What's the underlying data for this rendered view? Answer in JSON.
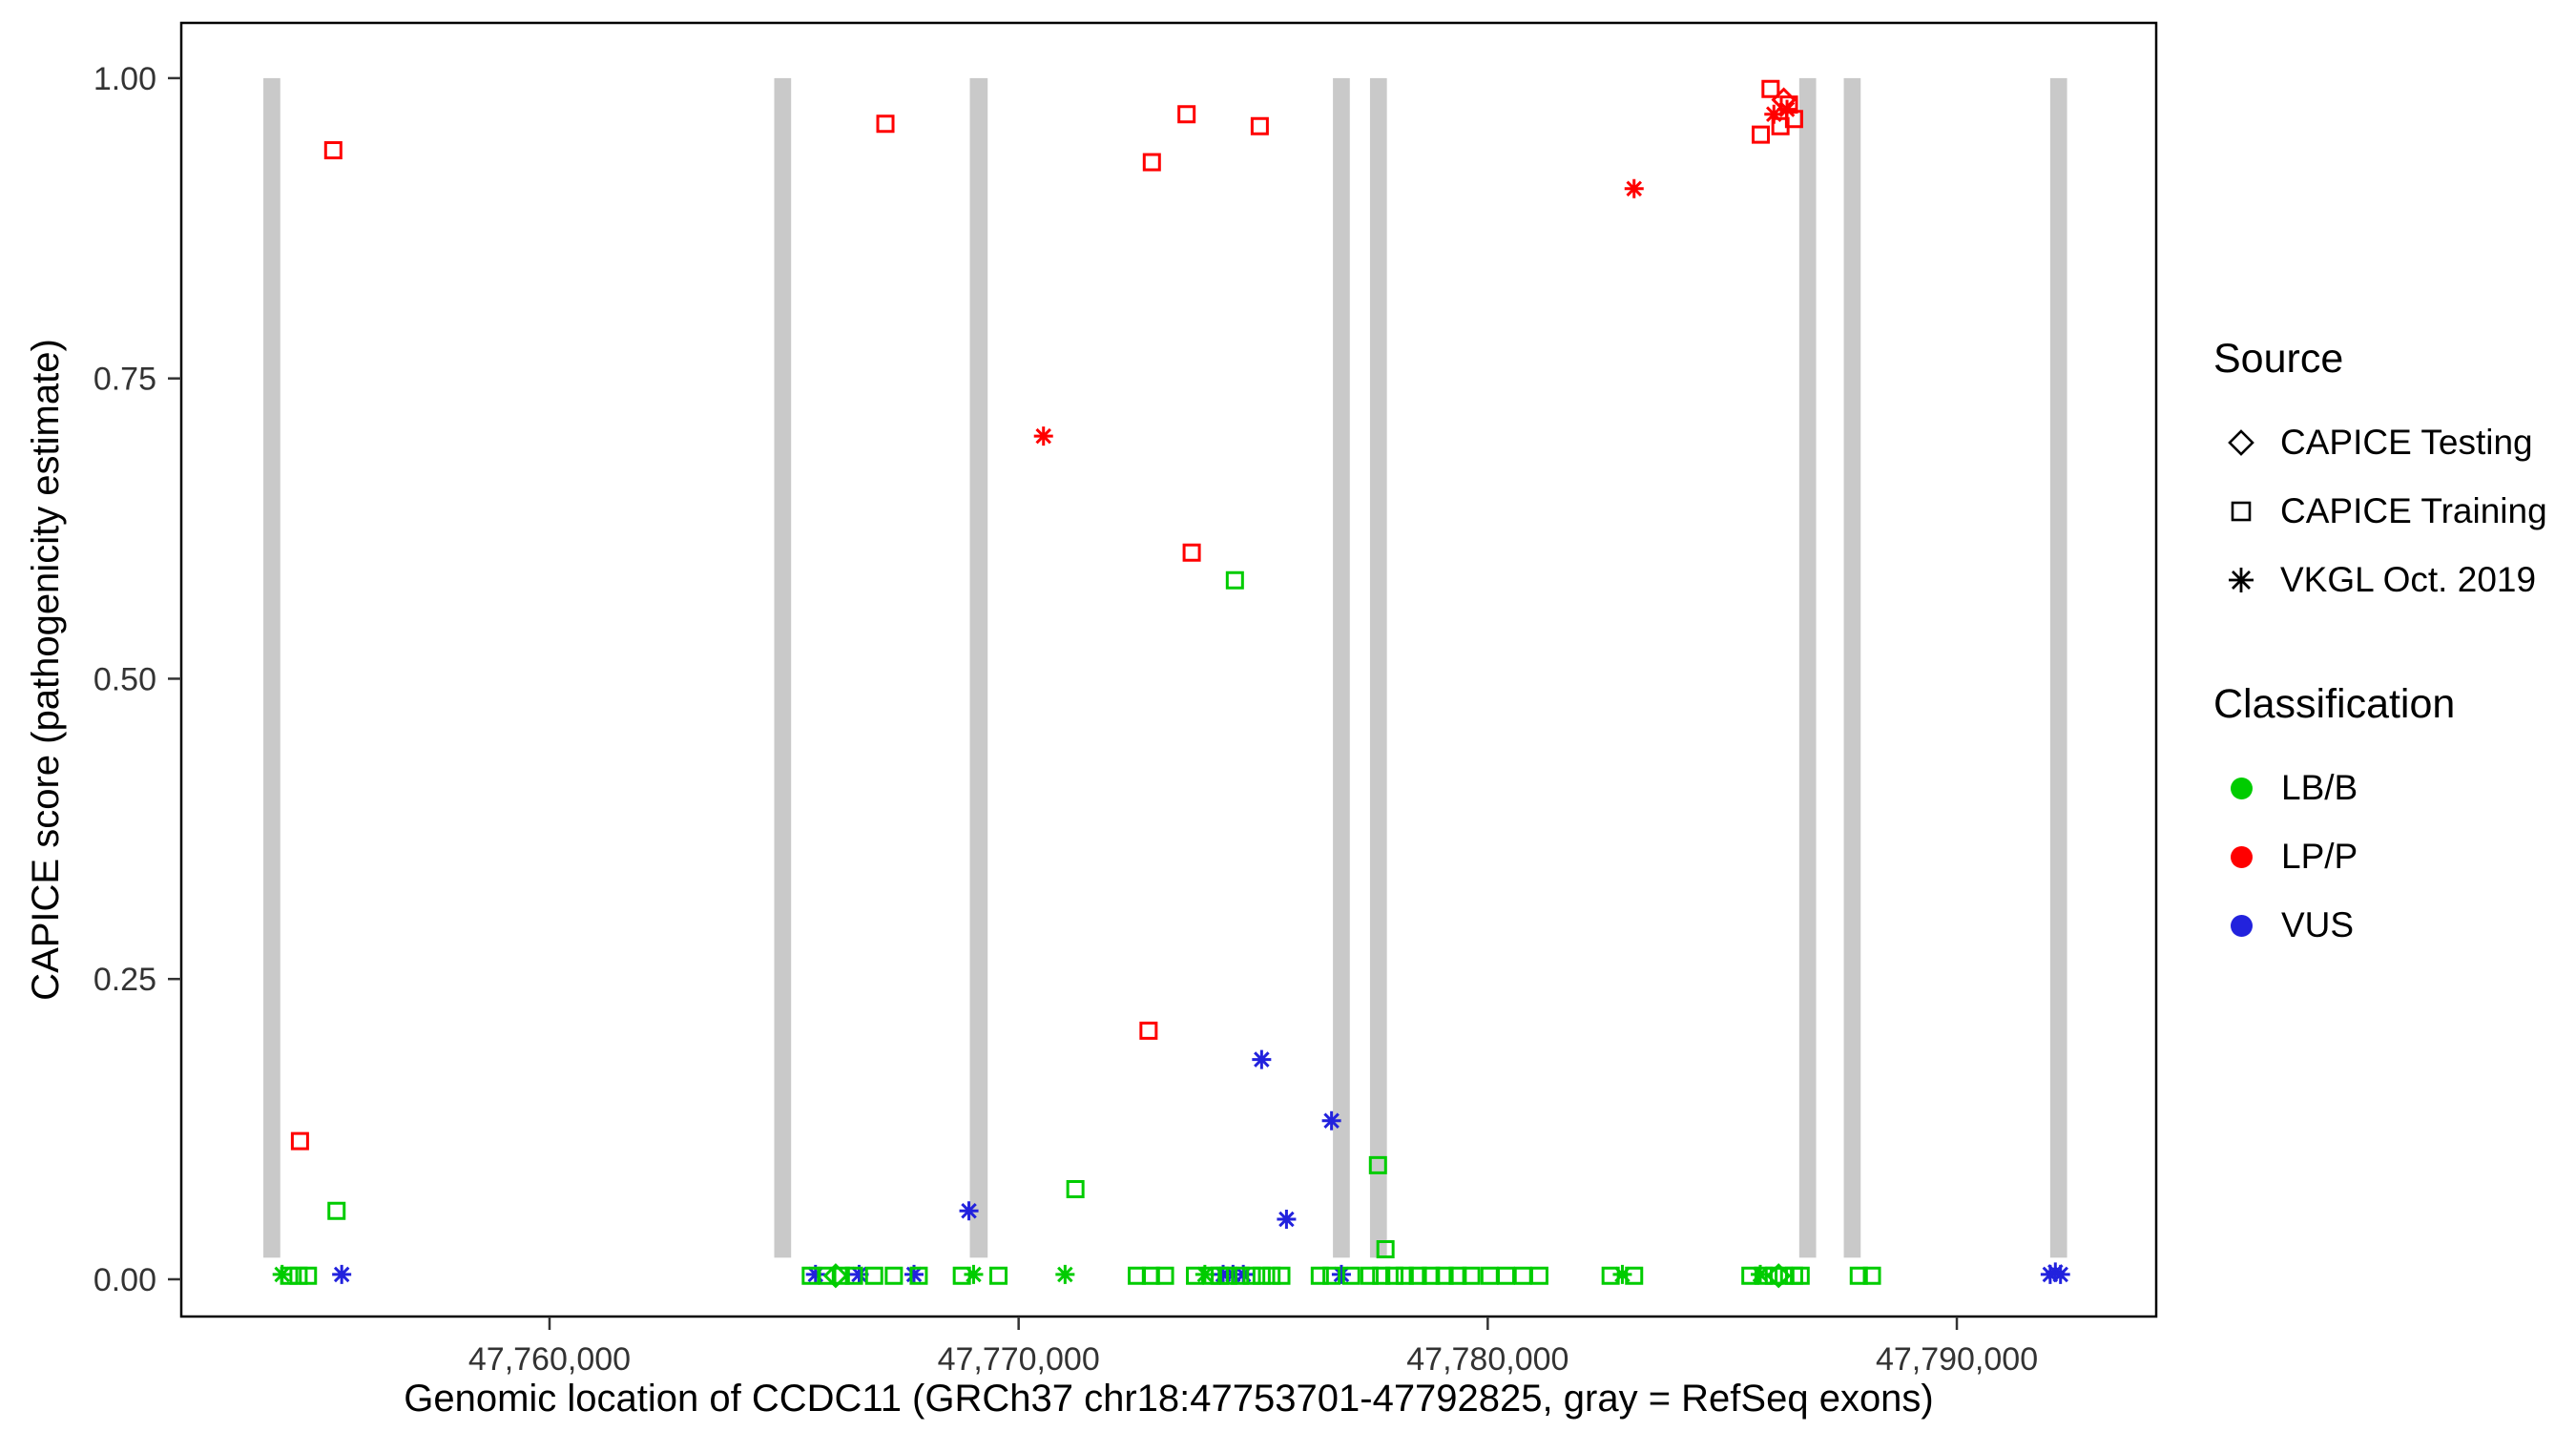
{
  "colors": {
    "LB/B": "#00CC00",
    "LP/P": "#FF0000",
    "VUS": "#2222DD",
    "exon": "#C9C9C9",
    "panel_border": "#000000",
    "tick_text": "#333333"
  },
  "legend": {
    "source": {
      "title": "Source",
      "items": [
        {
          "label": "CAPICE Testing",
          "marker": "diamond"
        },
        {
          "label": "CAPICE Training",
          "marker": "square"
        },
        {
          "label": "VKGL Oct. 2019",
          "marker": "asterisk"
        }
      ]
    },
    "classification": {
      "title": "Classification",
      "items": [
        {
          "label": "LB/B",
          "color": "#00CC00"
        },
        {
          "label": "LP/P",
          "color": "#FF0000"
        },
        {
          "label": "VUS",
          "color": "#2222DD"
        }
      ]
    }
  },
  "chart_data": {
    "type": "scatter",
    "title": "",
    "xlabel": "Genomic location of CCDC11 (GRCh37 chr18:47753701-47792825, gray = RefSeq exons)",
    "ylabel": "CAPICE score (pathogenicity estimate)",
    "xlim": [
      47752150,
      47794250
    ],
    "ylim": [
      -0.031,
      1.046
    ],
    "grid": false,
    "legend_position": "right",
    "x_ticks": [
      {
        "value": 47760000,
        "label": "47,760,000"
      },
      {
        "value": 47770000,
        "label": "47,770,000"
      },
      {
        "value": 47780000,
        "label": "47,780,000"
      },
      {
        "value": 47790000,
        "label": "47,790,000"
      }
    ],
    "y_ticks": [
      {
        "value": 0.0,
        "label": "0.00"
      },
      {
        "value": 0.25,
        "label": "0.25"
      },
      {
        "value": 0.5,
        "label": "0.50"
      },
      {
        "value": 0.75,
        "label": "0.75"
      },
      {
        "value": 1.0,
        "label": "1.00"
      }
    ],
    "marker_shapes": {
      "CAPICE Testing": "diamond",
      "CAPICE Training": "square",
      "VKGL Oct. 2019": "asterisk"
    },
    "exon_note": "gray vertical bars = RefSeq exons",
    "exon_y_range": [
      0.018,
      1.0
    ],
    "exons": [
      {
        "start": 47753900,
        "end": 47754260
      },
      {
        "start": 47764790,
        "end": 47765150
      },
      {
        "start": 47768960,
        "end": 47769340
      },
      {
        "start": 47776700,
        "end": 47777060
      },
      {
        "start": 47777490,
        "end": 47777850
      },
      {
        "start": 47786640,
        "end": 47787000
      },
      {
        "start": 47787590,
        "end": 47787950
      },
      {
        "start": 47791990,
        "end": 47792350
      }
    ],
    "points": [
      {
        "x": 47754680,
        "y": 0.115,
        "cls": "LP/P",
        "src": "CAPICE Training"
      },
      {
        "x": 47755390,
        "y": 0.94,
        "cls": "LP/P",
        "src": "CAPICE Training"
      },
      {
        "x": 47767160,
        "y": 0.962,
        "cls": "LP/P",
        "src": "CAPICE Training"
      },
      {
        "x": 47772770,
        "y": 0.207,
        "cls": "LP/P",
        "src": "CAPICE Training"
      },
      {
        "x": 47772840,
        "y": 0.93,
        "cls": "LP/P",
        "src": "CAPICE Training"
      },
      {
        "x": 47773580,
        "y": 0.97,
        "cls": "LP/P",
        "src": "CAPICE Training"
      },
      {
        "x": 47773690,
        "y": 0.605,
        "cls": "LP/P",
        "src": "CAPICE Training"
      },
      {
        "x": 47775140,
        "y": 0.96,
        "cls": "LP/P",
        "src": "CAPICE Training"
      },
      {
        "x": 47785820,
        "y": 0.953,
        "cls": "LP/P",
        "src": "CAPICE Training"
      },
      {
        "x": 47786030,
        "y": 0.991,
        "cls": "LP/P",
        "src": "CAPICE Training"
      },
      {
        "x": 47786240,
        "y": 0.96,
        "cls": "LP/P",
        "src": "CAPICE Training"
      },
      {
        "x": 47786420,
        "y": 0.978,
        "cls": "LP/P",
        "src": "CAPICE Training"
      },
      {
        "x": 47786530,
        "y": 0.966,
        "cls": "LP/P",
        "src": "CAPICE Training"
      },
      {
        "x": 47770530,
        "y": 0.702,
        "cls": "LP/P",
        "src": "VKGL Oct. 2019"
      },
      {
        "x": 47783120,
        "y": 0.908,
        "cls": "LP/P",
        "src": "VKGL Oct. 2019"
      },
      {
        "x": 47786100,
        "y": 0.97,
        "cls": "LP/P",
        "src": "VKGL Oct. 2019"
      },
      {
        "x": 47786380,
        "y": 0.974,
        "cls": "LP/P",
        "src": "VKGL Oct. 2019"
      },
      {
        "x": 47786310,
        "y": 0.982,
        "cls": "LP/P",
        "src": "CAPICE Testing"
      },
      {
        "x": 47755460,
        "y": 0.057,
        "cls": "LB/B",
        "src": "CAPICE Training"
      },
      {
        "x": 47771210,
        "y": 0.075,
        "cls": "LB/B",
        "src": "CAPICE Training"
      },
      {
        "x": 47774610,
        "y": 0.582,
        "cls": "LB/B",
        "src": "CAPICE Training"
      },
      {
        "x": 47777660,
        "y": 0.095,
        "cls": "LB/B",
        "src": "CAPICE Training"
      },
      {
        "x": 47777820,
        "y": 0.025,
        "cls": "LB/B",
        "src": "CAPICE Training"
      },
      {
        "x": 47768940,
        "y": 0.057,
        "cls": "VUS",
        "src": "VKGL Oct. 2019"
      },
      {
        "x": 47775180,
        "y": 0.183,
        "cls": "VUS",
        "src": "VKGL Oct. 2019"
      },
      {
        "x": 47775710,
        "y": 0.05,
        "cls": "VUS",
        "src": "VKGL Oct. 2019"
      },
      {
        "x": 47776670,
        "y": 0.132,
        "cls": "VUS",
        "src": "VKGL Oct. 2019"
      },
      {
        "x": 47755570,
        "y": 0.004,
        "cls": "VUS",
        "src": "VKGL Oct. 2019"
      },
      {
        "x": 47765670,
        "y": 0.004,
        "cls": "VUS",
        "src": "VKGL Oct. 2019"
      },
      {
        "x": 47766600,
        "y": 0.004,
        "cls": "VUS",
        "src": "VKGL Oct. 2019"
      },
      {
        "x": 47767770,
        "y": 0.004,
        "cls": "VUS",
        "src": "VKGL Oct. 2019"
      },
      {
        "x": 47774360,
        "y": 0.004,
        "cls": "VUS",
        "src": "VKGL Oct. 2019"
      },
      {
        "x": 47774570,
        "y": 0.004,
        "cls": "VUS",
        "src": "VKGL Oct. 2019"
      },
      {
        "x": 47774790,
        "y": 0.004,
        "cls": "VUS",
        "src": "VKGL Oct. 2019"
      },
      {
        "x": 47776880,
        "y": 0.004,
        "cls": "VUS",
        "src": "VKGL Oct. 2019"
      },
      {
        "x": 47791990,
        "y": 0.004,
        "cls": "VUS",
        "src": "VKGL Oct. 2019"
      },
      {
        "x": 47792100,
        "y": 0.006,
        "cls": "VUS",
        "src": "VKGL Oct. 2019"
      },
      {
        "x": 47792210,
        "y": 0.004,
        "cls": "VUS",
        "src": "VKGL Oct. 2019"
      },
      {
        "x": 47754300,
        "y": 0.004,
        "cls": "LB/B",
        "src": "VKGL Oct. 2019"
      },
      {
        "x": 47769040,
        "y": 0.004,
        "cls": "LB/B",
        "src": "VKGL Oct. 2019"
      },
      {
        "x": 47770990,
        "y": 0.004,
        "cls": "LB/B",
        "src": "VKGL Oct. 2019"
      },
      {
        "x": 47773970,
        "y": 0.004,
        "cls": "LB/B",
        "src": "VKGL Oct. 2019"
      },
      {
        "x": 47782870,
        "y": 0.004,
        "cls": "LB/B",
        "src": "VKGL Oct. 2019"
      },
      {
        "x": 47785810,
        "y": 0.004,
        "cls": "LB/B",
        "src": "VKGL Oct. 2019"
      },
      {
        "x": 47766100,
        "y": 0.003,
        "cls": "LB/B",
        "src": "CAPICE Testing"
      },
      {
        "x": 47786200,
        "y": 0.003,
        "cls": "LB/B",
        "src": "CAPICE Testing"
      },
      {
        "x": 47754450,
        "y": 0.003,
        "cls": "LB/B",
        "src": "CAPICE Training"
      },
      {
        "x": 47754650,
        "y": 0.003,
        "cls": "LB/B",
        "src": "CAPICE Training"
      },
      {
        "x": 47754850,
        "y": 0.003,
        "cls": "LB/B",
        "src": "CAPICE Training"
      },
      {
        "x": 47765570,
        "y": 0.003,
        "cls": "LB/B",
        "src": "CAPICE Training"
      },
      {
        "x": 47765920,
        "y": 0.003,
        "cls": "LB/B",
        "src": "CAPICE Training"
      },
      {
        "x": 47766210,
        "y": 0.003,
        "cls": "LB/B",
        "src": "CAPICE Training"
      },
      {
        "x": 47766490,
        "y": 0.003,
        "cls": "LB/B",
        "src": "CAPICE Training"
      },
      {
        "x": 47766920,
        "y": 0.003,
        "cls": "LB/B",
        "src": "CAPICE Training"
      },
      {
        "x": 47767340,
        "y": 0.003,
        "cls": "LB/B",
        "src": "CAPICE Training"
      },
      {
        "x": 47767870,
        "y": 0.003,
        "cls": "LB/B",
        "src": "CAPICE Training"
      },
      {
        "x": 47768790,
        "y": 0.003,
        "cls": "LB/B",
        "src": "CAPICE Training"
      },
      {
        "x": 47769570,
        "y": 0.003,
        "cls": "LB/B",
        "src": "CAPICE Training"
      },
      {
        "x": 47772520,
        "y": 0.003,
        "cls": "LB/B",
        "src": "CAPICE Training"
      },
      {
        "x": 47772820,
        "y": 0.003,
        "cls": "LB/B",
        "src": "CAPICE Training"
      },
      {
        "x": 47773120,
        "y": 0.003,
        "cls": "LB/B",
        "src": "CAPICE Training"
      },
      {
        "x": 47773760,
        "y": 0.003,
        "cls": "LB/B",
        "src": "CAPICE Training"
      },
      {
        "x": 47774110,
        "y": 0.003,
        "cls": "LB/B",
        "src": "CAPICE Training"
      },
      {
        "x": 47774290,
        "y": 0.003,
        "cls": "LB/B",
        "src": "CAPICE Training"
      },
      {
        "x": 47774470,
        "y": 0.003,
        "cls": "LB/B",
        "src": "CAPICE Training"
      },
      {
        "x": 47774720,
        "y": 0.003,
        "cls": "LB/B",
        "src": "CAPICE Training"
      },
      {
        "x": 47774970,
        "y": 0.003,
        "cls": "LB/B",
        "src": "CAPICE Training"
      },
      {
        "x": 47775180,
        "y": 0.003,
        "cls": "LB/B",
        "src": "CAPICE Training"
      },
      {
        "x": 47775390,
        "y": 0.003,
        "cls": "LB/B",
        "src": "CAPICE Training"
      },
      {
        "x": 47775600,
        "y": 0.003,
        "cls": "LB/B",
        "src": "CAPICE Training"
      },
      {
        "x": 47776420,
        "y": 0.003,
        "cls": "LB/B",
        "src": "CAPICE Training"
      },
      {
        "x": 47776670,
        "y": 0.003,
        "cls": "LB/B",
        "src": "CAPICE Training"
      },
      {
        "x": 47777090,
        "y": 0.003,
        "cls": "LB/B",
        "src": "CAPICE Training"
      },
      {
        "x": 47777480,
        "y": 0.003,
        "cls": "LB/B",
        "src": "CAPICE Training"
      },
      {
        "x": 47777730,
        "y": 0.003,
        "cls": "LB/B",
        "src": "CAPICE Training"
      },
      {
        "x": 47778010,
        "y": 0.003,
        "cls": "LB/B",
        "src": "CAPICE Training"
      },
      {
        "x": 47778230,
        "y": 0.003,
        "cls": "LB/B",
        "src": "CAPICE Training"
      },
      {
        "x": 47778510,
        "y": 0.003,
        "cls": "LB/B",
        "src": "CAPICE Training"
      },
      {
        "x": 47778790,
        "y": 0.003,
        "cls": "LB/B",
        "src": "CAPICE Training"
      },
      {
        "x": 47779080,
        "y": 0.003,
        "cls": "LB/B",
        "src": "CAPICE Training"
      },
      {
        "x": 47779360,
        "y": 0.003,
        "cls": "LB/B",
        "src": "CAPICE Training"
      },
      {
        "x": 47779650,
        "y": 0.003,
        "cls": "LB/B",
        "src": "CAPICE Training"
      },
      {
        "x": 47780040,
        "y": 0.003,
        "cls": "LB/B",
        "src": "CAPICE Training"
      },
      {
        "x": 47780390,
        "y": 0.003,
        "cls": "LB/B",
        "src": "CAPICE Training"
      },
      {
        "x": 47780750,
        "y": 0.003,
        "cls": "LB/B",
        "src": "CAPICE Training"
      },
      {
        "x": 47781100,
        "y": 0.003,
        "cls": "LB/B",
        "src": "CAPICE Training"
      },
      {
        "x": 47782620,
        "y": 0.003,
        "cls": "LB/B",
        "src": "CAPICE Training"
      },
      {
        "x": 47783120,
        "y": 0.003,
        "cls": "LB/B",
        "src": "CAPICE Training"
      },
      {
        "x": 47785600,
        "y": 0.003,
        "cls": "LB/B",
        "src": "CAPICE Training"
      },
      {
        "x": 47785880,
        "y": 0.003,
        "cls": "LB/B",
        "src": "CAPICE Training"
      },
      {
        "x": 47786100,
        "y": 0.003,
        "cls": "LB/B",
        "src": "CAPICE Training"
      },
      {
        "x": 47786310,
        "y": 0.003,
        "cls": "LB/B",
        "src": "CAPICE Training"
      },
      {
        "x": 47786530,
        "y": 0.003,
        "cls": "LB/B",
        "src": "CAPICE Training"
      },
      {
        "x": 47786670,
        "y": 0.003,
        "cls": "LB/B",
        "src": "CAPICE Training"
      },
      {
        "x": 47787910,
        "y": 0.003,
        "cls": "LB/B",
        "src": "CAPICE Training"
      },
      {
        "x": 47788190,
        "y": 0.003,
        "cls": "LB/B",
        "src": "CAPICE Training"
      }
    ]
  }
}
